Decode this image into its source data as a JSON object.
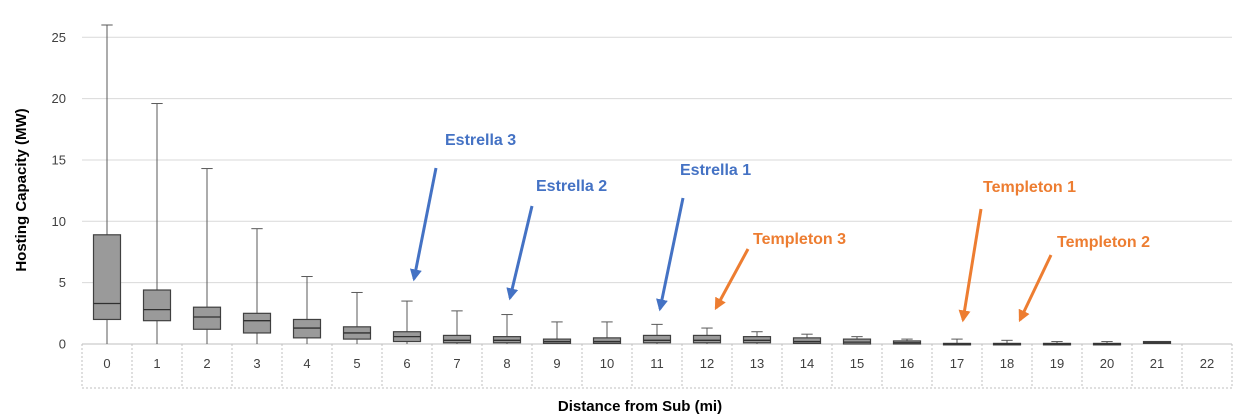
{
  "chart_data": {
    "type": "box",
    "xlabel": "Distance from Sub (mi)",
    "ylabel": "Hosting Capacity (MW)",
    "ylim": [
      0,
      26
    ],
    "yticks": [
      0,
      5,
      10,
      15,
      20,
      25
    ],
    "categories": [
      "0",
      "1",
      "2",
      "3",
      "4",
      "5",
      "6",
      "7",
      "8",
      "9",
      "10",
      "11",
      "12",
      "13",
      "14",
      "15",
      "16",
      "17",
      "18",
      "19",
      "20",
      "21",
      "22"
    ],
    "grid": "horizontal",
    "box_color": "#9a9a9a",
    "boxes": [
      {
        "min": 0,
        "q1": 2.0,
        "median": 3.3,
        "q3": 8.9,
        "max": 26.0
      },
      {
        "min": 0,
        "q1": 1.9,
        "median": 2.8,
        "q3": 4.4,
        "max": 19.6
      },
      {
        "min": 0,
        "q1": 1.2,
        "median": 2.2,
        "q3": 3.0,
        "max": 14.3
      },
      {
        "min": 0,
        "q1": 0.9,
        "median": 1.9,
        "q3": 2.5,
        "max": 9.4
      },
      {
        "min": 0,
        "q1": 0.5,
        "median": 1.3,
        "q3": 2.0,
        "max": 5.5
      },
      {
        "min": 0,
        "q1": 0.4,
        "median": 0.9,
        "q3": 1.4,
        "max": 4.2
      },
      {
        "min": 0,
        "q1": 0.2,
        "median": 0.6,
        "q3": 1.0,
        "max": 3.5
      },
      {
        "min": 0,
        "q1": 0.1,
        "median": 0.3,
        "q3": 0.7,
        "max": 2.7
      },
      {
        "min": 0,
        "q1": 0.1,
        "median": 0.3,
        "q3": 0.6,
        "max": 2.4
      },
      {
        "min": 0,
        "q1": 0.05,
        "median": 0.2,
        "q3": 0.4,
        "max": 1.8
      },
      {
        "min": 0,
        "q1": 0.05,
        "median": 0.2,
        "q3": 0.5,
        "max": 1.8
      },
      {
        "min": 0,
        "q1": 0.1,
        "median": 0.3,
        "q3": 0.7,
        "max": 1.6
      },
      {
        "min": 0,
        "q1": 0.1,
        "median": 0.3,
        "q3": 0.7,
        "max": 1.3
      },
      {
        "min": 0,
        "q1": 0.1,
        "median": 0.3,
        "q3": 0.6,
        "max": 1.0
      },
      {
        "min": 0,
        "q1": 0.05,
        "median": 0.2,
        "q3": 0.5,
        "max": 0.8
      },
      {
        "min": 0,
        "q1": 0.0,
        "median": 0.15,
        "q3": 0.4,
        "max": 0.6
      },
      {
        "min": 0,
        "q1": 0.0,
        "median": 0.1,
        "q3": 0.25,
        "max": 0.4
      },
      {
        "min": 0,
        "q1": 0.0,
        "median": 0.0,
        "q3": 0.05,
        "max": 0.4
      },
      {
        "min": 0,
        "q1": 0.0,
        "median": 0.0,
        "q3": 0.05,
        "max": 0.3
      },
      {
        "min": 0,
        "q1": 0.0,
        "median": 0.0,
        "q3": 0.05,
        "max": 0.2
      },
      {
        "min": 0,
        "q1": 0.0,
        "median": 0.0,
        "q3": 0.05,
        "max": 0.2
      },
      {
        "min": 0,
        "q1": 0.05,
        "median": 0.1,
        "q3": 0.2,
        "max": 0.2
      },
      null
    ],
    "annotations": [
      {
        "text": "Estrella 3",
        "color": "#4472c4",
        "target_x": 6,
        "target_y": 5.0
      },
      {
        "text": "Estrella 2",
        "color": "#4472c4",
        "target_x": 8,
        "target_y": 3.5
      },
      {
        "text": "Estrella 1",
        "color": "#4472c4",
        "target_x": 11,
        "target_y": 2.5
      },
      {
        "text": "Templeton 3",
        "color": "#ed7d31",
        "target_x": 12,
        "target_y": 2.5
      },
      {
        "text": "Templeton 1",
        "color": "#ed7d31",
        "target_x": 17,
        "target_y": 1.5
      },
      {
        "text": "Templeton 2",
        "color": "#ed7d31",
        "target_x": 18,
        "target_y": 1.5
      }
    ]
  }
}
